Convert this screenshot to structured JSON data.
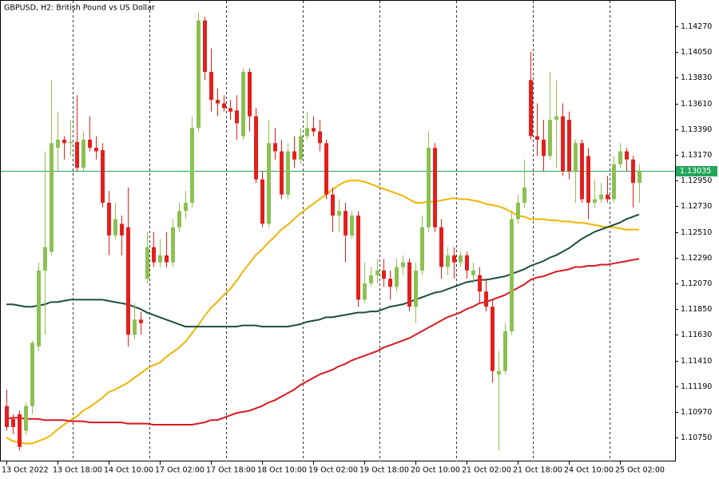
{
  "chart_data": {
    "type": "candlestick",
    "title": "GBPUSD, H2:  British Pound vs US Dollar",
    "categories": [
      "13 Oct 2022",
      null,
      null,
      null,
      null,
      null,
      null,
      null,
      "13 Oct 18:00",
      null,
      null,
      null,
      null,
      null,
      null,
      null,
      "14 Oct 10:00",
      null,
      null,
      null,
      null,
      null,
      null,
      null,
      "17 Oct 02:00",
      null,
      null,
      null,
      null,
      null,
      null,
      null,
      "17 Oct 18:00",
      null,
      null,
      null,
      null,
      null,
      null,
      null,
      "18 Oct 10:00",
      null,
      null,
      null,
      null,
      null,
      null,
      null,
      "19 Oct 02:00",
      null,
      null,
      null,
      null,
      null,
      null,
      null,
      "19 Oct 18:00",
      null,
      null,
      null,
      null,
      null,
      null,
      null,
      "20 Oct 10:00",
      null,
      null,
      null,
      null,
      null,
      null,
      null,
      "21 Oct 02:00",
      null,
      null,
      null,
      null,
      null,
      null,
      null,
      "21 Oct 18:00",
      null,
      null,
      null,
      null,
      null,
      null,
      null,
      "24 Oct 10:00",
      null,
      null,
      null,
      null,
      null,
      null,
      null,
      "25 Oct 02:00",
      null,
      null,
      null
    ],
    "open": [
      1.1102,
      1.1091,
      1.1095,
      1.1081,
      1.1102,
      1.1153,
      1.1218,
      1.1234,
      1.1323,
      1.133,
      1.1327,
      1.1328,
      1.1306,
      1.133,
      1.1323,
      1.1321,
      1.1276,
      1.1248,
      1.1258,
      1.1255,
      1.1163,
      1.1176,
      1.1211,
      1.1238,
      1.1225,
      1.1231,
      1.1225,
      1.1255,
      1.1269,
      1.1276,
      1.134,
      1.1432,
      1.1388,
      1.1364,
      1.1361,
      1.1357,
      1.1355,
      1.1333,
      1.1388,
      1.135,
      1.1296,
      1.1258,
      1.1327,
      1.132,
      1.1283,
      1.132,
      1.1313,
      1.1333,
      1.134,
      1.1337,
      1.1327,
      1.1283,
      1.1265,
      1.1269,
      1.1248,
      1.1265,
      1.1193,
      1.1207,
      1.1214,
      1.1218,
      1.1211,
      1.1204,
      1.1221,
      1.1225,
      1.1187,
      1.1218,
      1.1255,
      1.1323,
      1.1255,
      1.1221,
      1.1231,
      1.1225,
      1.1231,
      1.1214,
      1.1214,
      1.12,
      1.1187,
      1.1129,
      1.1132,
      1.1166,
      1.1262,
      1.1276,
      1.1381,
      1.1333,
      1.133,
      1.1316,
      1.1347,
      1.135,
      1.1347,
      1.1303,
      1.1327,
      1.1316,
      1.1276,
      1.1279,
      1.1283,
      1.1279,
      1.1309,
      1.132,
      1.1313,
      1.1293
    ],
    "high": [
      1.1116,
      1.1095,
      1.1098,
      1.1105,
      1.1158,
      1.1225,
      1.132,
      1.1381,
      1.1354,
      1.1333,
      1.1347,
      1.1368,
      1.1337,
      1.135,
      1.1333,
      1.1327,
      1.1286,
      1.1276,
      1.1265,
      1.1289,
      1.119,
      1.1183,
      1.1251,
      1.1251,
      1.1245,
      1.1251,
      1.1262,
      1.1276,
      1.1286,
      1.135,
      1.1439,
      1.1435,
      1.1408,
      1.1374,
      1.1368,
      1.1364,
      1.1368,
      1.1391,
      1.1391,
      1.1357,
      1.1303,
      1.1347,
      1.134,
      1.133,
      1.1327,
      1.1333,
      1.134,
      1.1354,
      1.135,
      1.1347,
      1.133,
      1.1289,
      1.1279,
      1.1276,
      1.1269,
      1.1269,
      1.1225,
      1.1221,
      1.1228,
      1.1228,
      1.1218,
      1.1228,
      1.1231,
      1.1228,
      1.1225,
      1.1265,
      1.1337,
      1.1327,
      1.1262,
      1.1238,
      1.1238,
      1.1234,
      1.1234,
      1.1225,
      1.1221,
      1.1211,
      1.1193,
      1.1149,
      1.1173,
      1.1269,
      1.1283,
      1.1313,
      1.1405,
      1.1361,
      1.1347,
      1.1388,
      1.1381,
      1.1361,
      1.1354,
      1.133,
      1.133,
      1.1323,
      1.1296,
      1.1293,
      1.1299,
      1.1316,
      1.1327,
      1.1323,
      1.1316,
      1.1309
    ],
    "low": [
      1.1081,
      1.1078,
      1.1064,
      1.1077,
      1.1095,
      1.1149,
      1.1163,
      1.1231,
      1.1303,
      1.1313,
      1.1316,
      1.1303,
      1.1303,
      1.132,
      1.1313,
      1.1272,
      1.1231,
      1.1245,
      1.1231,
      1.1153,
      1.1159,
      1.1163,
      1.1207,
      1.1221,
      1.1221,
      1.1221,
      1.1221,
      1.1251,
      1.1262,
      1.1272,
      1.1337,
      1.1381,
      1.1354,
      1.135,
      1.1354,
      1.1347,
      1.133,
      1.133,
      1.1337,
      1.1293,
      1.1255,
      1.1255,
      1.1313,
      1.1279,
      1.1279,
      1.1306,
      1.1309,
      1.133,
      1.1333,
      1.132,
      1.1279,
      1.1251,
      1.1251,
      1.1225,
      1.1245,
      1.1187,
      1.119,
      1.1204,
      1.1207,
      1.1204,
      1.1193,
      1.12,
      1.1214,
      1.1183,
      1.1173,
      1.1214,
      1.1251,
      1.1251,
      1.1211,
      1.1214,
      1.1211,
      1.1221,
      1.1211,
      1.1207,
      1.119,
      1.1183,
      1.1122,
      1.1064,
      1.1129,
      1.1163,
      1.1258,
      1.1272,
      1.133,
      1.1316,
      1.1303,
      1.1313,
      1.1306,
      1.1299,
      1.1296,
      1.1276,
      1.1276,
      1.1262,
      1.1272,
      1.1276,
      1.1276,
      1.1276,
      1.1306,
      1.1303,
      1.1272,
      1.1276
    ],
    "close": [
      1.1084,
      1.1084,
      1.1067,
      1.1102,
      1.1156,
      1.1218,
      1.1238,
      1.1327,
      1.133,
      1.1327,
      1.1328,
      1.1306,
      1.133,
      1.1323,
      1.132,
      1.1276,
      1.1248,
      1.1262,
      1.1248,
      1.1163,
      1.1176,
      1.1173,
      1.1238,
      1.1225,
      1.1231,
      1.1225,
      1.1255,
      1.1269,
      1.1276,
      1.134,
      1.1432,
      1.1388,
      1.1364,
      1.1361,
      1.1357,
      1.1354,
      1.1344,
      1.1388,
      1.135,
      1.1296,
      1.1258,
      1.1327,
      1.132,
      1.1283,
      1.132,
      1.1313,
      1.1333,
      1.134,
      1.1337,
      1.1327,
      1.1283,
      1.1265,
      1.1269,
      1.1248,
      1.1265,
      1.1193,
      1.1207,
      1.1214,
      1.1218,
      1.1211,
      1.1204,
      1.1221,
      1.1225,
      1.1187,
      1.1218,
      1.1255,
      1.1323,
      1.1255,
      1.1221,
      1.1231,
      1.1225,
      1.1231,
      1.1218,
      1.1218,
      1.12,
      1.1187,
      1.1132,
      1.1132,
      1.1166,
      1.1262,
      1.1276,
      1.1289,
      1.1333,
      1.133,
      1.1316,
      1.1347,
      1.135,
      1.1303,
      1.1303,
      1.1327,
      1.1279,
      1.1276,
      1.1279,
      1.1283,
      1.1279,
      1.1309,
      1.132,
      1.1313,
      1.1293,
      1.13035
    ],
    "up_color": "#8cc152",
    "down_color": "#e3201e",
    "lines": [
      {
        "color": "#f0b400",
        "values": [
          1.1075,
          1.1072,
          1.1071,
          1.107,
          1.107,
          1.1072,
          1.1074,
          1.1077,
          1.1082,
          1.1086,
          1.109,
          1.1093,
          1.1098,
          1.1101,
          1.1105,
          1.1109,
          1.1114,
          1.1116,
          1.1119,
          1.1122,
          1.1126,
          1.113,
          1.1134,
          1.1137,
          1.1139,
          1.1144,
          1.1148,
          1.1152,
          1.1157,
          1.1164,
          1.1171,
          1.1179,
          1.1186,
          1.1191,
          1.1197,
          1.1202,
          1.1209,
          1.1217,
          1.1224,
          1.1231,
          1.1236,
          1.1242,
          1.1247,
          1.1253,
          1.1257,
          1.1262,
          1.1267,
          1.1271,
          1.1275,
          1.1279,
          1.1283,
          1.1287,
          1.1291,
          1.1294,
          1.1295,
          1.1295,
          1.1294,
          1.1292,
          1.129,
          1.1288,
          1.1286,
          1.1284,
          1.1282,
          1.1279,
          1.1276,
          1.1276,
          1.1277,
          1.1277,
          1.1278,
          1.1279,
          1.128,
          1.1279,
          1.1279,
          1.1278,
          1.1277,
          1.1275,
          1.1274,
          1.1273,
          1.1271,
          1.1268,
          1.1265,
          1.1264,
          1.1262,
          1.1262,
          1.1262,
          1.1261,
          1.1261,
          1.126,
          1.126,
          1.1259,
          1.1259,
          1.1258,
          1.1257,
          1.1256,
          1.1255,
          1.1255,
          1.1254,
          1.1253,
          1.1253,
          1.1253
        ]
      },
      {
        "color": "#1d4f3c",
        "values": [
          1.1189,
          1.1189,
          1.1188,
          1.1187,
          1.1187,
          1.1188,
          1.1189,
          1.1191,
          1.1191,
          1.1192,
          1.1193,
          1.1193,
          1.1193,
          1.1193,
          1.1193,
          1.1193,
          1.1192,
          1.1191,
          1.119,
          1.1189,
          1.1187,
          1.1185,
          1.1182,
          1.118,
          1.1178,
          1.1176,
          1.1174,
          1.1172,
          1.117,
          1.117,
          1.117,
          1.117,
          1.117,
          1.117,
          1.117,
          1.117,
          1.117,
          1.1171,
          1.1171,
          1.1171,
          1.117,
          1.117,
          1.117,
          1.117,
          1.117,
          1.1171,
          1.1172,
          1.1174,
          1.1175,
          1.1176,
          1.1178,
          1.1178,
          1.1179,
          1.118,
          1.1181,
          1.1182,
          1.1182,
          1.1183,
          1.1183,
          1.1185,
          1.1187,
          1.1188,
          1.1189,
          1.1191,
          1.1193,
          1.1195,
          1.1197,
          1.1199,
          1.12,
          1.1202,
          1.1204,
          1.1206,
          1.1208,
          1.1209,
          1.121,
          1.121,
          1.1211,
          1.1212,
          1.1213,
          1.1215,
          1.1217,
          1.1219,
          1.1222,
          1.1224,
          1.1226,
          1.1229,
          1.1231,
          1.1234,
          1.1237,
          1.1241,
          1.1245,
          1.1248,
          1.1251,
          1.1253,
          1.1255,
          1.1257,
          1.1259,
          1.1262,
          1.1264,
          1.1266
        ]
      },
      {
        "color": "#d71a1f",
        "values": [
          1.1091,
          1.1092,
          1.1092,
          1.1091,
          1.1091,
          1.1091,
          1.109,
          1.109,
          1.109,
          1.109,
          1.1089,
          1.1089,
          1.1089,
          1.1088,
          1.1088,
          1.1088,
          1.1088,
          1.1088,
          1.1088,
          1.1087,
          1.1087,
          1.1087,
          1.1087,
          1.1086,
          1.1086,
          1.1086,
          1.1086,
          1.1086,
          1.1086,
          1.1086,
          1.1087,
          1.1088,
          1.109,
          1.109,
          1.1092,
          1.1094,
          1.1096,
          1.1097,
          1.1098,
          1.11,
          1.1102,
          1.1105,
          1.1107,
          1.111,
          1.1113,
          1.1116,
          1.112,
          1.1123,
          1.1126,
          1.1129,
          1.1131,
          1.1133,
          1.1136,
          1.1138,
          1.1141,
          1.1143,
          1.1145,
          1.1147,
          1.1149,
          1.1152,
          1.1154,
          1.1156,
          1.1158,
          1.116,
          1.1163,
          1.1166,
          1.1169,
          1.1172,
          1.1175,
          1.1178,
          1.118,
          1.1182,
          1.1185,
          1.1187,
          1.119,
          1.1191,
          1.1193,
          1.1195,
          1.1197,
          1.12,
          1.1203,
          1.1206,
          1.121,
          1.1212,
          1.1213,
          1.1215,
          1.1217,
          1.1218,
          1.1219,
          1.1221,
          1.1221,
          1.1222,
          1.1222,
          1.1223,
          1.1223,
          1.1224,
          1.1225,
          1.1226,
          1.1227,
          1.1228
        ]
      }
    ],
    "current_price": 1.13035,
    "current_price_color": "#26a65b",
    "ylim": [
      1.10546,
      1.14495
    ],
    "yticks": [
      {
        "value": 1.1427,
        "label": "1.14270"
      },
      {
        "value": 1.1405,
        "label": "1.14050"
      },
      {
        "value": 1.1383,
        "label": "1.13830"
      },
      {
        "value": 1.1361,
        "label": "1.13610"
      },
      {
        "value": 1.1339,
        "label": "1.13390"
      },
      {
        "value": 1.1317,
        "label": "1.13170"
      },
      {
        "value": 1.1295,
        "label": "1.12950"
      },
      {
        "value": 1.1273,
        "label": "1.12730"
      },
      {
        "value": 1.1251,
        "label": "1.12510"
      },
      {
        "value": 1.1229,
        "label": "1.12290"
      },
      {
        "value": 1.1207,
        "label": "1.12070"
      },
      {
        "value": 1.1185,
        "label": "1.11850"
      },
      {
        "value": 1.1163,
        "label": "1.11630"
      },
      {
        "value": 1.1141,
        "label": "1.11410"
      },
      {
        "value": 1.1119,
        "label": "1.11190"
      },
      {
        "value": 1.1097,
        "label": "1.10970"
      },
      {
        "value": 1.1075,
        "label": "1.10750"
      }
    ],
    "grid": false
  }
}
